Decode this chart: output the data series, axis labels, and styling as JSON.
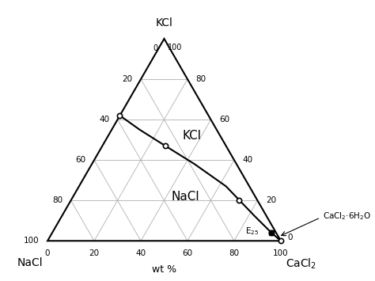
{
  "background_color": "#ffffff",
  "line_color": "#000000",
  "grid_color": "#b0b0b0",
  "xlabel": "wt %",
  "corner_label_KCl": "KCl",
  "corner_label_NaCl": "NaCl",
  "corner_label_CaCl2": "CaCl$_2$",
  "phase_label_KCl": "KCl",
  "phase_label_NaCl": "NaCl",
  "cacl2_6h2o_label": "CaCl$_2$·6H$_2$O",
  "E25_label": "E$_{25}$",
  "solubility_curve": [
    [
      38,
      62,
      0
    ],
    [
      33,
      55,
      12
    ],
    [
      26,
      47,
      27
    ],
    [
      18,
      38,
      44
    ],
    [
      10,
      27,
      63
    ],
    [
      5,
      12,
      83
    ],
    [
      2,
      4,
      94
    ]
  ],
  "cacl2_curve": [
    [
      2,
      4,
      94
    ],
    [
      0,
      0,
      100
    ]
  ],
  "open_circle_pts": [
    [
      38,
      62,
      0
    ],
    [
      26,
      47,
      27
    ],
    [
      8,
      20,
      72
    ],
    [
      2,
      4,
      94
    ]
  ],
  "filled_square_pt": [
    2,
    4,
    94
  ],
  "KCl_region_pt": [
    12,
    52,
    36
  ],
  "NaCl_region_pt": [
    30,
    22,
    48
  ]
}
